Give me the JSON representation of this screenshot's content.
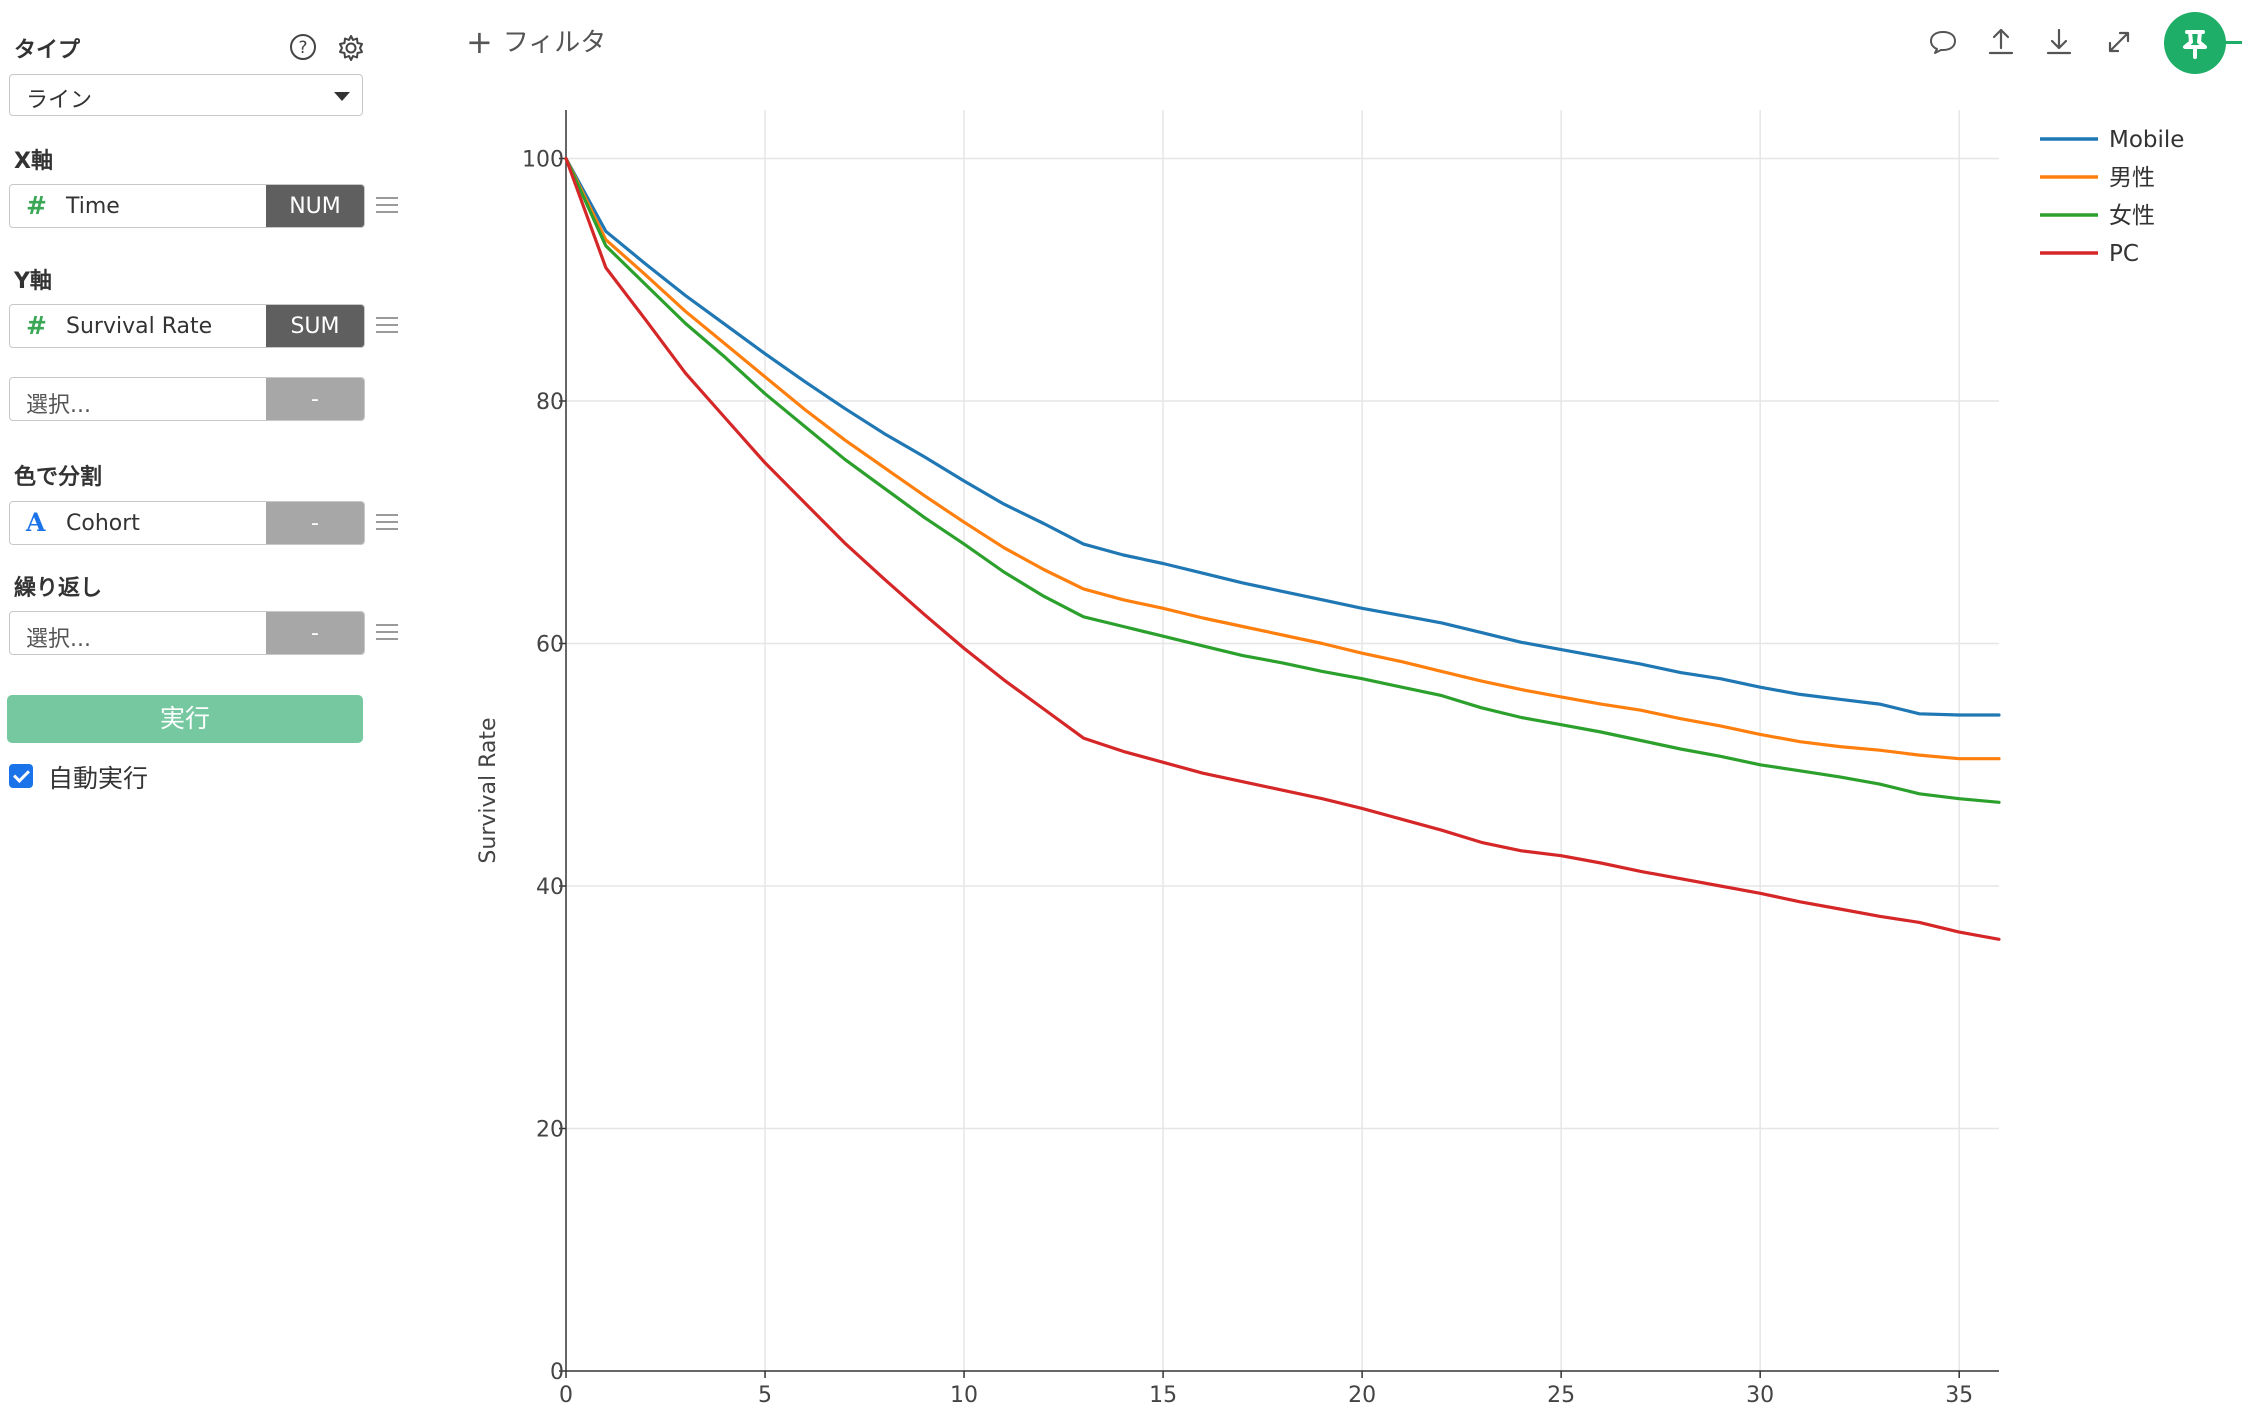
{
  "sidebar": {
    "type_label": "タイプ",
    "chart_type_value": "ライン",
    "x_axis_label": "X軸",
    "x_field": {
      "name": "Time",
      "icon": "#",
      "agg": "NUM"
    },
    "y_axis_label": "Y軸",
    "y_field": {
      "name": "Survival Rate",
      "icon": "#",
      "agg": "SUM"
    },
    "y_extra": {
      "placeholder": "選択...",
      "agg": "-"
    },
    "color_split_label": "色で分割",
    "color_field": {
      "name": "Cohort",
      "icon": "A",
      "agg": "-"
    },
    "repeat_label": "繰り返し",
    "repeat_field": {
      "placeholder": "選択...",
      "agg": "-"
    },
    "run_label": "実行",
    "auto_run_label": "自動実行",
    "auto_run_checked": true
  },
  "toolbar": {
    "filter_label": "フィルタ",
    "icons": [
      "comment-icon",
      "upload-icon",
      "download-icon",
      "expand-icon",
      "pin-icon"
    ]
  },
  "colors": {
    "Mobile": "#1f77b4",
    "男性": "#ff7f0e",
    "女性": "#2ca02c",
    "PC": "#d62728",
    "run_button": "#76c8a1",
    "pin_button": "#1fae67"
  },
  "chart_data": {
    "type": "line",
    "title": "",
    "xlabel": "",
    "ylabel": "Survival Rate",
    "xlim": [
      0,
      36
    ],
    "ylim": [
      0,
      104
    ],
    "x_ticks": [
      0,
      5,
      10,
      15,
      20,
      25,
      30,
      35
    ],
    "y_ticks": [
      0,
      20,
      40,
      60,
      80,
      100
    ],
    "grid": true,
    "legend_position": "top-right",
    "x": [
      0,
      1,
      2,
      3,
      4,
      5,
      6,
      7,
      8,
      9,
      10,
      11,
      12,
      13,
      14,
      15,
      16,
      17,
      18,
      19,
      20,
      21,
      22,
      23,
      24,
      25,
      26,
      27,
      28,
      29,
      30,
      31,
      32,
      33,
      34,
      35,
      36
    ],
    "series": [
      {
        "name": "Mobile",
        "values": [
          100,
          94,
          91.3,
          88.7,
          86.3,
          83.9,
          81.6,
          79.4,
          77.3,
          75.4,
          73.4,
          71.5,
          69.9,
          68.2,
          67.3,
          66.6,
          65.8,
          65,
          64.3,
          63.6,
          62.9,
          62.3,
          61.7,
          60.9,
          60.1,
          59.5,
          58.9,
          58.3,
          57.6,
          57.1,
          56.4,
          55.8,
          55.4,
          55,
          54.2,
          54.1,
          54.1
        ]
      },
      {
        "name": "男性",
        "values": [
          100,
          93.3,
          90.4,
          87.4,
          84.7,
          82,
          79.3,
          76.8,
          74.5,
          72.2,
          70,
          67.9,
          66.1,
          64.5,
          63.6,
          62.9,
          62.1,
          61.4,
          60.7,
          60,
          59.2,
          58.5,
          57.7,
          56.9,
          56.2,
          55.6,
          55,
          54.5,
          53.8,
          53.2,
          52.5,
          51.9,
          51.5,
          51.2,
          50.8,
          50.5,
          50.5
        ]
      },
      {
        "name": "女性",
        "values": [
          100,
          92.8,
          89.6,
          86.4,
          83.6,
          80.6,
          77.9,
          75.2,
          72.8,
          70.4,
          68.2,
          65.9,
          63.9,
          62.2,
          61.4,
          60.6,
          59.8,
          59,
          58.4,
          57.7,
          57.1,
          56.4,
          55.7,
          54.7,
          53.9,
          53.3,
          52.7,
          52,
          51.3,
          50.7,
          50,
          49.5,
          49,
          48.4,
          47.6,
          47.2,
          46.9
        ]
      },
      {
        "name": "PC",
        "values": [
          100,
          91,
          86.7,
          82.3,
          78.6,
          74.9,
          71.6,
          68.3,
          65.3,
          62.4,
          59.6,
          57,
          54.6,
          52.2,
          51.1,
          50.2,
          49.3,
          48.6,
          47.9,
          47.2,
          46.4,
          45.5,
          44.6,
          43.6,
          42.9,
          42.5,
          41.9,
          41.2,
          40.6,
          40,
          39.4,
          38.7,
          38.1,
          37.5,
          37,
          36.2,
          35.6
        ]
      }
    ]
  }
}
